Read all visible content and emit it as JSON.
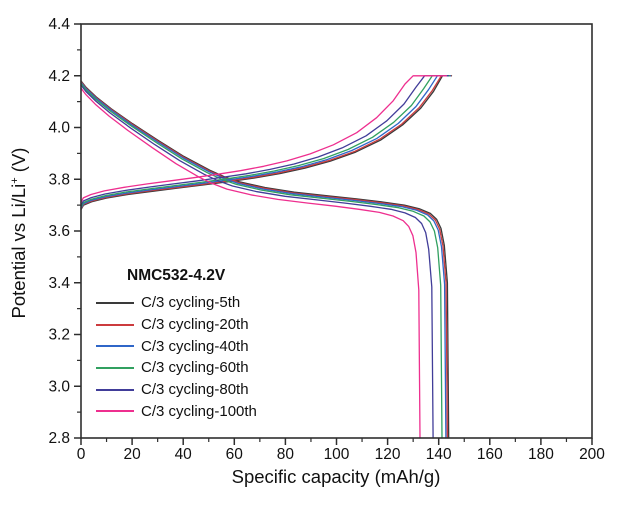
{
  "chart_data": {
    "type": "line",
    "title": "",
    "xlabel": "Specific capacity (mAh/g)",
    "ylabel": "Potential vs Li/Li+ (V)",
    "ylabel_parts": {
      "pre": "Potential vs Li/Li",
      "sup": "+",
      "post": " (V)"
    },
    "axes": {
      "xlim": [
        0,
        200
      ],
      "ylim": [
        2.8,
        4.4
      ],
      "xticks": [
        0,
        20,
        40,
        60,
        80,
        100,
        120,
        140,
        160,
        180,
        200
      ],
      "xtick_labels": [
        "0",
        "20",
        "40",
        "60",
        "80",
        "100",
        "120",
        "140",
        "160",
        "180",
        "200"
      ],
      "xticks_minor": [
        10,
        30,
        50,
        70,
        90,
        110,
        130,
        150,
        170,
        190
      ],
      "yticks": [
        2.8,
        3.0,
        3.2,
        3.4,
        3.6,
        3.8,
        4.0,
        4.2,
        4.4
      ],
      "ytick_labels": [
        "2.8",
        "3.0",
        "3.2",
        "3.4",
        "3.6",
        "3.8",
        "4.0",
        "4.2",
        "4.4"
      ],
      "yticks_minor": [
        2.9,
        3.1,
        3.3,
        3.5,
        3.7,
        3.9,
        4.1,
        4.3
      ],
      "grid": false,
      "frame": "box",
      "frame_color": "#2e2e2e",
      "text_color": "#111111"
    },
    "legend": {
      "title": "NMC532-4.2V",
      "position": "inside-left-bottom"
    },
    "series": [
      {
        "name": "C/3 cycling-5th",
        "color": "#3a3a3a",
        "discharge_capacity": 143.9,
        "charge": [
          [
            0,
            3.683
          ],
          [
            1,
            3.7
          ],
          [
            4.2,
            3.713
          ],
          [
            9.9,
            3.727
          ],
          [
            18.4,
            3.741
          ],
          [
            28.3,
            3.754
          ],
          [
            38.2,
            3.766
          ],
          [
            48.1,
            3.778
          ],
          [
            58,
            3.791
          ],
          [
            67.9,
            3.805
          ],
          [
            77.8,
            3.822
          ],
          [
            87.7,
            3.843
          ],
          [
            97.6,
            3.87
          ],
          [
            107.5,
            3.905
          ],
          [
            117.4,
            3.952
          ],
          [
            125.9,
            4.01
          ],
          [
            133,
            4.075
          ],
          [
            138,
            4.14
          ],
          [
            141.5,
            4.2
          ],
          [
            145,
            4.2
          ]
        ],
        "discharge": [
          [
            0,
            4.18
          ],
          [
            2,
            4.155
          ],
          [
            6,
            4.118
          ],
          [
            11.9,
            4.072
          ],
          [
            20.1,
            4.015
          ],
          [
            30.2,
            3.95
          ],
          [
            40.3,
            3.888
          ],
          [
            50.4,
            3.835
          ],
          [
            56.1,
            3.81
          ],
          [
            61.9,
            3.79
          ],
          [
            72,
            3.768
          ],
          [
            83.5,
            3.75
          ],
          [
            96.4,
            3.736
          ],
          [
            107.9,
            3.724
          ],
          [
            118,
            3.712
          ],
          [
            126.6,
            3.7
          ],
          [
            132.4,
            3.686
          ],
          [
            136.7,
            3.668
          ],
          [
            139.2,
            3.645
          ],
          [
            140.9,
            3.61
          ],
          [
            142.2,
            3.545
          ],
          [
            143.4,
            3.4
          ],
          [
            143.9,
            2.8
          ]
        ]
      },
      {
        "name": "C/3 cycling-20th",
        "color": "#cc3b3e",
        "discharge_capacity": 143.4,
        "charge": [
          [
            0,
            3.686
          ],
          [
            1,
            3.703
          ],
          [
            4.2,
            3.716
          ],
          [
            9.9,
            3.73
          ],
          [
            18.3,
            3.744
          ],
          [
            28.2,
            3.757
          ],
          [
            38.1,
            3.769
          ],
          [
            47.9,
            3.781
          ],
          [
            57.8,
            3.794
          ],
          [
            67.7,
            3.808
          ],
          [
            77.6,
            3.825
          ],
          [
            87.4,
            3.846
          ],
          [
            97.3,
            3.873
          ],
          [
            107.2,
            3.908
          ],
          [
            117,
            3.955
          ],
          [
            125.5,
            4.013
          ],
          [
            132.5,
            4.078
          ],
          [
            137.5,
            4.143
          ],
          [
            141,
            4.2
          ],
          [
            144.8,
            4.2
          ]
        ],
        "discharge": [
          [
            0,
            4.177
          ],
          [
            2,
            4.152
          ],
          [
            6,
            4.115
          ],
          [
            11.9,
            4.069
          ],
          [
            20.1,
            4.012
          ],
          [
            30.1,
            3.947
          ],
          [
            40.2,
            3.885
          ],
          [
            50.2,
            3.832
          ],
          [
            55.9,
            3.807
          ],
          [
            61.7,
            3.787
          ],
          [
            71.7,
            3.765
          ],
          [
            83.2,
            3.747
          ],
          [
            96.1,
            3.733
          ],
          [
            107.6,
            3.721
          ],
          [
            117.6,
            3.709
          ],
          [
            126.2,
            3.697
          ],
          [
            131.9,
            3.683
          ],
          [
            136.2,
            3.665
          ],
          [
            138.7,
            3.642
          ],
          [
            140.4,
            3.607
          ],
          [
            141.7,
            3.542
          ],
          [
            142.9,
            3.397
          ],
          [
            143.4,
            2.8
          ]
        ]
      },
      {
        "name": "C/3 cycling-40th",
        "color": "#2f66c8",
        "discharge_capacity": 142.8,
        "charge": [
          [
            0,
            3.689
          ],
          [
            1,
            3.706
          ],
          [
            4.2,
            3.719
          ],
          [
            9.8,
            3.733
          ],
          [
            18.1,
            3.747
          ],
          [
            27.9,
            3.76
          ],
          [
            37.7,
            3.772
          ],
          [
            47.4,
            3.784
          ],
          [
            57.2,
            3.797
          ],
          [
            67,
            3.811
          ],
          [
            76.7,
            3.828
          ],
          [
            86.5,
            3.849
          ],
          [
            96.3,
            3.876
          ],
          [
            106,
            3.911
          ],
          [
            115.8,
            3.958
          ],
          [
            124.2,
            4.016
          ],
          [
            131.1,
            4.081
          ],
          [
            136,
            4.146
          ],
          [
            139.5,
            4.2
          ],
          [
            144.6,
            4.2
          ]
        ],
        "discharge": [
          [
            0,
            4.174
          ],
          [
            2,
            4.149
          ],
          [
            6,
            4.112
          ],
          [
            11.9,
            4.066
          ],
          [
            20,
            4.009
          ],
          [
            30,
            3.944
          ],
          [
            40,
            3.882
          ],
          [
            50,
            3.829
          ],
          [
            55.7,
            3.804
          ],
          [
            61.4,
            3.784
          ],
          [
            71.4,
            3.762
          ],
          [
            82.8,
            3.744
          ],
          [
            95.7,
            3.73
          ],
          [
            107.1,
            3.718
          ],
          [
            117.1,
            3.706
          ],
          [
            125.7,
            3.694
          ],
          [
            131.4,
            3.68
          ],
          [
            135.7,
            3.662
          ],
          [
            138.1,
            3.639
          ],
          [
            139.8,
            3.604
          ],
          [
            141.1,
            3.539
          ],
          [
            142.3,
            3.394
          ],
          [
            142.8,
            2.8
          ]
        ]
      },
      {
        "name": "C/3 cycling-60th",
        "color": "#31a060",
        "discharge_capacity": 141.3,
        "charge": [
          [
            0,
            3.693
          ],
          [
            1,
            3.71
          ],
          [
            4.1,
            3.723
          ],
          [
            9.6,
            3.737
          ],
          [
            17.9,
            3.751
          ],
          [
            27.5,
            3.764
          ],
          [
            37.1,
            3.776
          ],
          [
            46.8,
            3.788
          ],
          [
            56.4,
            3.801
          ],
          [
            66,
            3.815
          ],
          [
            75.6,
            3.832
          ],
          [
            85.3,
            3.853
          ],
          [
            94.9,
            3.88
          ],
          [
            104.5,
            3.915
          ],
          [
            114.1,
            3.962
          ],
          [
            122.4,
            4.02
          ],
          [
            129.3,
            4.085
          ],
          [
            134.1,
            4.15
          ],
          [
            137.5,
            4.2
          ],
          [
            144.3,
            4.2
          ]
        ],
        "discharge": [
          [
            0,
            4.17
          ],
          [
            2,
            4.145
          ],
          [
            5.9,
            4.108
          ],
          [
            11.7,
            4.062
          ],
          [
            19.8,
            4.005
          ],
          [
            29.7,
            3.94
          ],
          [
            39.6,
            3.878
          ],
          [
            49.5,
            3.825
          ],
          [
            55.1,
            3.8
          ],
          [
            60.8,
            3.78
          ],
          [
            70.7,
            3.758
          ],
          [
            82,
            3.74
          ],
          [
            94.7,
            3.726
          ],
          [
            106,
            3.714
          ],
          [
            115.9,
            3.702
          ],
          [
            124.3,
            3.69
          ],
          [
            130,
            3.676
          ],
          [
            134.2,
            3.658
          ],
          [
            136.6,
            3.635
          ],
          [
            138.3,
            3.6
          ],
          [
            139.6,
            3.535
          ],
          [
            140.8,
            3.39
          ],
          [
            141.3,
            2.8
          ]
        ]
      },
      {
        "name": "C/3 cycling-80th",
        "color": "#413d99",
        "discharge_capacity": 137.8,
        "charge": [
          [
            0,
            3.699
          ],
          [
            0.9,
            3.716
          ],
          [
            4,
            3.729
          ],
          [
            9.4,
            3.743
          ],
          [
            17.5,
            3.757
          ],
          [
            26.9,
            3.77
          ],
          [
            36.3,
            3.782
          ],
          [
            45.7,
            3.794
          ],
          [
            55.1,
            3.807
          ],
          [
            64.6,
            3.821
          ],
          [
            74,
            3.838
          ],
          [
            83.4,
            3.859
          ],
          [
            92.8,
            3.886
          ],
          [
            102.2,
            3.921
          ],
          [
            111.6,
            3.968
          ],
          [
            119.7,
            4.026
          ],
          [
            126.4,
            4.091
          ],
          [
            131.1,
            4.156
          ],
          [
            134.5,
            4.2
          ],
          [
            143.8,
            4.2
          ]
        ],
        "discharge": [
          [
            0,
            4.164
          ],
          [
            1.9,
            4.139
          ],
          [
            5.8,
            4.102
          ],
          [
            11.4,
            4.056
          ],
          [
            19.3,
            3.999
          ],
          [
            28.9,
            3.934
          ],
          [
            38.6,
            3.872
          ],
          [
            48.2,
            3.819
          ],
          [
            53.7,
            3.794
          ],
          [
            59.3,
            3.774
          ],
          [
            68.9,
            3.752
          ],
          [
            79.9,
            3.734
          ],
          [
            92.3,
            3.72
          ],
          [
            103.4,
            3.708
          ],
          [
            113,
            3.696
          ],
          [
            121.3,
            3.684
          ],
          [
            126.8,
            3.67
          ],
          [
            130.9,
            3.652
          ],
          [
            133.3,
            3.629
          ],
          [
            134.9,
            3.594
          ],
          [
            136.1,
            3.529
          ],
          [
            137.3,
            3.384
          ],
          [
            137.8,
            2.8
          ]
        ]
      },
      {
        "name": "C/3 cycling-100th",
        "color": "#ee2f8f",
        "discharge_capacity": 132.7,
        "charge": [
          [
            0,
            3.711
          ],
          [
            0.9,
            3.728
          ],
          [
            3.9,
            3.741
          ],
          [
            9.1,
            3.755
          ],
          [
            16.9,
            3.769
          ],
          [
            26,
            3.782
          ],
          [
            35.1,
            3.794
          ],
          [
            44.2,
            3.806
          ],
          [
            53.3,
            3.819
          ],
          [
            62.4,
            3.833
          ],
          [
            71.5,
            3.85
          ],
          [
            80.6,
            3.871
          ],
          [
            89.7,
            3.898
          ],
          [
            98.8,
            3.933
          ],
          [
            107.9,
            3.98
          ],
          [
            115.7,
            4.038
          ],
          [
            122.2,
            4.103
          ],
          [
            126.8,
            4.168
          ],
          [
            130,
            4.2
          ],
          [
            143,
            4.2
          ]
        ],
        "discharge": [
          [
            0,
            4.152
          ],
          [
            1.9,
            4.127
          ],
          [
            5.6,
            4.09
          ],
          [
            11,
            4.044
          ],
          [
            18.6,
            3.987
          ],
          [
            27.9,
            3.922
          ],
          [
            37.2,
            3.86
          ],
          [
            46.4,
            3.807
          ],
          [
            51.8,
            3.782
          ],
          [
            57.1,
            3.762
          ],
          [
            66.4,
            3.74
          ],
          [
            77,
            3.722
          ],
          [
            88.9,
            3.708
          ],
          [
            99.5,
            3.696
          ],
          [
            108.8,
            3.684
          ],
          [
            116.8,
            3.672
          ],
          [
            122.1,
            3.658
          ],
          [
            126.1,
            3.64
          ],
          [
            128.3,
            3.617
          ],
          [
            129.9,
            3.582
          ],
          [
            131.1,
            3.517
          ],
          [
            132.2,
            3.372
          ],
          [
            132.7,
            2.8
          ]
        ]
      }
    ]
  }
}
